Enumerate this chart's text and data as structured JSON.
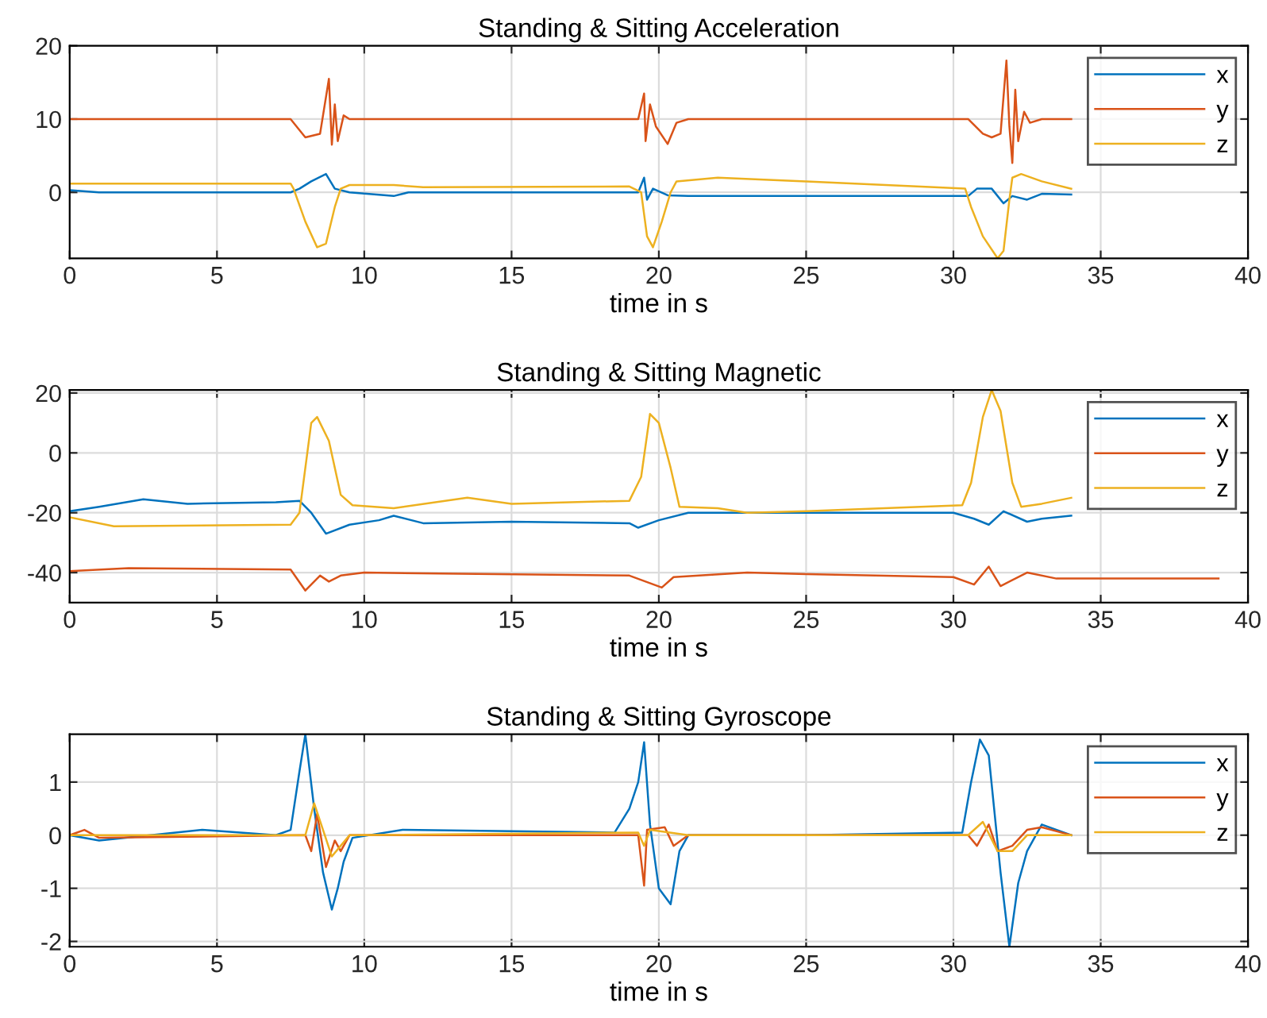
{
  "chart_data": [
    {
      "type": "line",
      "title": "Standing & Sitting Acceleration",
      "xlabel": "time in s",
      "xlim": [
        0,
        40
      ],
      "xticks": [
        0,
        5,
        10,
        15,
        20,
        25,
        30,
        35,
        40
      ],
      "ylim": [
        -9,
        20
      ],
      "yticks": [
        0,
        10,
        20
      ],
      "grid": true,
      "legend": "top right",
      "line_style": "solid",
      "marker": "none",
      "series": [
        {
          "name": "x",
          "color": "#0072bd",
          "x": [
            0,
            1,
            7.5,
            7.8,
            8.2,
            8.7,
            9,
            9.5,
            11,
            11.5,
            19.3,
            19.5,
            19.6,
            19.8,
            20.3,
            21,
            30.5,
            30.8,
            31.3,
            31.7,
            32,
            32.5,
            33,
            34
          ],
          "values": [
            0.3,
            0,
            0,
            0.5,
            1.5,
            2.5,
            0.5,
            0,
            -0.5,
            0,
            0,
            2,
            -1,
            0.5,
            -0.4,
            -0.5,
            -0.5,
            0.5,
            0.5,
            -1.5,
            -0.5,
            -1,
            -0.2,
            -0.3
          ]
        },
        {
          "name": "y",
          "color": "#d95319",
          "x": [
            0,
            7.5,
            8,
            8.5,
            8.8,
            8.9,
            9.0,
            9.1,
            9.3,
            9.5,
            19.3,
            19.5,
            19.55,
            19.7,
            19.9,
            20.3,
            20.6,
            21,
            30.5,
            31,
            31.3,
            31.6,
            31.8,
            31.9,
            32.0,
            32.1,
            32.2,
            32.4,
            32.6,
            33,
            34
          ],
          "values": [
            10,
            10,
            7.5,
            8,
            15.5,
            6.5,
            12,
            7,
            10.5,
            10,
            10,
            13.5,
            7,
            12,
            9,
            6.6,
            9.5,
            10,
            10,
            8,
            7.5,
            8,
            18,
            9,
            4,
            14,
            7,
            11,
            9.5,
            10,
            10
          ]
        },
        {
          "name": "z",
          "color": "#edb120",
          "x": [
            0,
            7.5,
            7.6,
            8,
            8.4,
            8.7,
            9,
            9.2,
            9.5,
            11,
            12,
            19,
            19.4,
            19.6,
            19.8,
            20.1,
            20.4,
            20.6,
            22,
            25,
            30.4,
            30.6,
            31,
            31.5,
            31.7,
            31.9,
            32.0,
            32.3,
            33,
            34
          ],
          "values": [
            1.2,
            1.2,
            0.5,
            -4,
            -7.5,
            -7,
            -2,
            0.5,
            1,
            1,
            0.7,
            0.8,
            0,
            -6,
            -7.5,
            -4,
            0,
            1.5,
            2,
            1.5,
            0.5,
            -2,
            -6,
            -9,
            -8,
            -1,
            2,
            2.5,
            1.5,
            0.5
          ]
        }
      ]
    },
    {
      "type": "line",
      "title": "Standing & Sitting Magnetic",
      "xlabel": "time in s",
      "xlim": [
        0,
        40
      ],
      "xticks": [
        0,
        5,
        10,
        15,
        20,
        25,
        30,
        35,
        40
      ],
      "ylim": [
        -50,
        21
      ],
      "yticks": [
        -40,
        -20,
        0,
        20
      ],
      "grid": true,
      "legend": "top right",
      "line_style": "solid",
      "marker": "none",
      "series": [
        {
          "name": "x",
          "color": "#0072bd",
          "x": [
            0,
            1,
            2.5,
            4,
            7,
            7.8,
            8.2,
            8.7,
            9.5,
            10.5,
            11,
            12,
            15,
            19,
            19.3,
            20,
            21,
            25,
            30,
            30.7,
            31.2,
            31.7,
            32.5,
            33,
            34
          ],
          "values": [
            -19.5,
            -18,
            -15.5,
            -17,
            -16.5,
            -16,
            -20,
            -27,
            -24,
            -22.5,
            -21,
            -23.5,
            -23,
            -23.5,
            -25,
            -22.5,
            -20,
            -20,
            -20,
            -22,
            -24,
            -19.5,
            -23,
            -22,
            -21
          ]
        },
        {
          "name": "y",
          "color": "#d95319",
          "x": [
            0,
            2,
            7.5,
            8,
            8.5,
            8.8,
            9.2,
            10,
            19,
            20.1,
            20.5,
            23,
            25,
            30,
            30.7,
            31.2,
            31.6,
            32.5,
            33.5,
            39
          ],
          "values": [
            -39.5,
            -38.5,
            -39,
            -46,
            -41,
            -43,
            -41,
            -40,
            -41,
            -45,
            -41.5,
            -40,
            -40.5,
            -41.5,
            -44,
            -38,
            -44.5,
            -40,
            -42,
            -42
          ]
        },
        {
          "name": "z",
          "color": "#edb120",
          "x": [
            0,
            1.5,
            7.5,
            7.8,
            8.2,
            8.4,
            8.8,
            9.2,
            9.6,
            11,
            13.5,
            15,
            19,
            19.4,
            19.7,
            20,
            20.4,
            20.7,
            22,
            23,
            25,
            30.3,
            30.6,
            31,
            31.3,
            31.6,
            32,
            32.3,
            33,
            34
          ],
          "values": [
            -21.5,
            -24.5,
            -24,
            -20,
            10,
            12,
            4,
            -14,
            -17.5,
            -18.5,
            -15,
            -17,
            -16,
            -8,
            13,
            10,
            -5,
            -18,
            -18.5,
            -20,
            -19.5,
            -17.5,
            -10,
            12,
            21,
            14,
            -10,
            -18,
            -17,
            -15
          ]
        }
      ]
    },
    {
      "type": "line",
      "title": "Standing & Sitting Gyroscope",
      "xlabel": "time in s",
      "xlim": [
        0,
        40
      ],
      "xticks": [
        0,
        5,
        10,
        15,
        20,
        25,
        30,
        35,
        40
      ],
      "ylim": [
        -2.1,
        1.9
      ],
      "yticks": [
        -2,
        -1,
        0,
        1
      ],
      "grid": true,
      "legend": "top right",
      "line_style": "solid",
      "marker": "none",
      "series": [
        {
          "name": "x",
          "color": "#0072bd",
          "x": [
            0,
            1,
            4.5,
            7,
            7.5,
            7.8,
            8.0,
            8.3,
            8.6,
            8.9,
            9.1,
            9.3,
            9.6,
            11.3,
            18.5,
            19.0,
            19.3,
            19.5,
            19.7,
            20,
            20.4,
            20.7,
            21,
            25,
            30.3,
            30.6,
            30.9,
            31.2,
            31.6,
            31.9,
            32.2,
            32.5,
            33,
            34
          ],
          "values": [
            0,
            -0.1,
            0.1,
            0,
            0.1,
            1.2,
            1.9,
            0.5,
            -0.7,
            -1.4,
            -1.0,
            -0.5,
            -0.05,
            0.1,
            0.05,
            0.5,
            1.0,
            1.75,
            0.2,
            -1.0,
            -1.3,
            -0.3,
            0,
            0,
            0.05,
            1.0,
            1.8,
            1.5,
            -0.7,
            -2.1,
            -0.9,
            -0.3,
            0.2,
            0
          ]
        },
        {
          "name": "y",
          "color": "#d95319",
          "x": [
            0,
            0.5,
            1,
            8,
            8.2,
            8.4,
            8.7,
            9.0,
            9.2,
            9.5,
            19.3,
            19.5,
            19.6,
            20.2,
            20.5,
            21,
            30.5,
            30.8,
            31.2,
            31.5,
            32.0,
            32.5,
            33,
            34
          ],
          "values": [
            0,
            0.1,
            -0.05,
            0,
            -0.3,
            0.4,
            -0.6,
            -0.1,
            -0.3,
            0,
            0,
            -0.95,
            0.1,
            0.15,
            -0.2,
            0,
            0,
            -0.2,
            0.2,
            -0.3,
            -0.2,
            0.1,
            0.15,
            0
          ]
        },
        {
          "name": "z",
          "color": "#edb120",
          "x": [
            0,
            8,
            8.3,
            8.6,
            8.9,
            9.2,
            9.5,
            19.3,
            19.5,
            19.7,
            21,
            30.5,
            31,
            31.5,
            32,
            32.5,
            34
          ],
          "values": [
            0,
            0,
            0.6,
            0.1,
            -0.4,
            -0.2,
            0,
            0.05,
            -0.2,
            0.1,
            0,
            0,
            0.25,
            -0.3,
            -0.3,
            0,
            0
          ]
        }
      ]
    }
  ]
}
